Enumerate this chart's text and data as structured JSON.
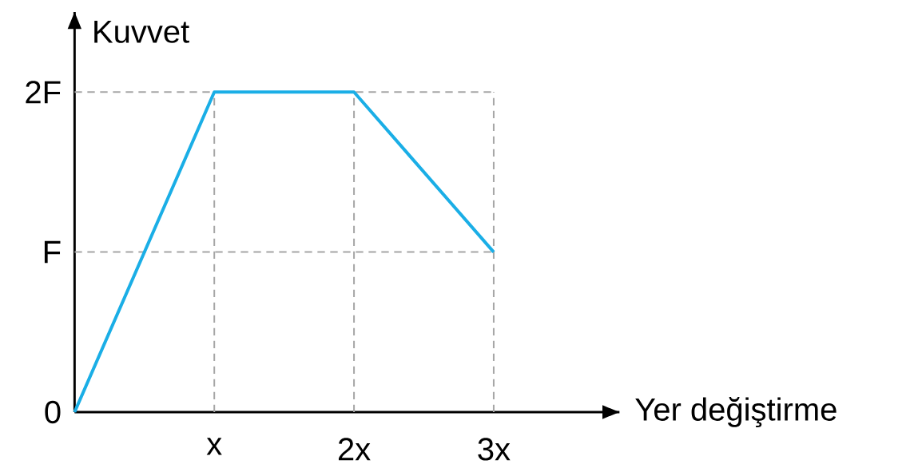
{
  "chart_data": {
    "type": "line",
    "xlabel": "Yer değiştirme",
    "ylabel": "Kuvvet",
    "x": [
      0,
      1,
      2,
      3
    ],
    "values": [
      0,
      2,
      2,
      1
    ],
    "color": "#1aaee6",
    "line_style": "solid",
    "xlim": [
      0,
      3.9
    ],
    "ylim": [
      0,
      2.5
    ],
    "xticks": [
      {
        "value": 0,
        "label": null
      },
      {
        "value": 1,
        "label": "x"
      },
      {
        "value": 2,
        "label": "2x"
      },
      {
        "value": 3,
        "label": "3x"
      }
    ],
    "yticks": [
      {
        "value": 0,
        "label": "0"
      },
      {
        "value": 1,
        "label": "F"
      },
      {
        "value": 2,
        "label": "2F"
      }
    ],
    "grid": true
  }
}
